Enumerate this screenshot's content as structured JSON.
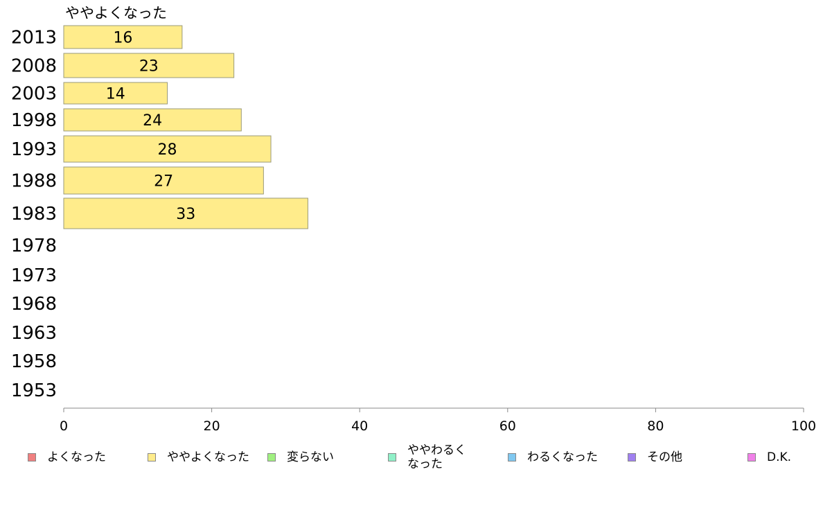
{
  "chart_data": {
    "type": "bar",
    "orientation": "horizontal",
    "title": "ややよくなった",
    "categories": [
      "2013",
      "2008",
      "2003",
      "1998",
      "1993",
      "1988",
      "1983",
      "1978",
      "1973",
      "1968",
      "1963",
      "1958",
      "1953"
    ],
    "series": [
      {
        "name": "ややよくなった",
        "color": "#ffec8b",
        "values": [
          16,
          23,
          14,
          24,
          28,
          27,
          33,
          null,
          null,
          null,
          null,
          null,
          null
        ]
      }
    ],
    "xlim": [
      0,
      100
    ],
    "xticks": [
      "0",
      "20",
      "40",
      "60",
      "80",
      "100"
    ],
    "xlabel": "",
    "ylabel": "",
    "grid": false,
    "legend_position": "bottom"
  },
  "legend": {
    "items": [
      {
        "label_lines": [
          "よくなった"
        ],
        "color": "#f08080"
      },
      {
        "label_lines": [
          "ややよくなった"
        ],
        "color": "#ffec8b"
      },
      {
        "label_lines": [
          "変らない"
        ],
        "color": "#a0f080"
      },
      {
        "label_lines": [
          "ややわるく",
          "なった"
        ],
        "color": "#90f0c8"
      },
      {
        "label_lines": [
          "わるくなった"
        ],
        "color": "#80c8f0"
      },
      {
        "label_lines": [
          "その他"
        ],
        "color": "#a080f0"
      },
      {
        "label_lines": [
          "D.K."
        ],
        "color": "#f080e8"
      }
    ]
  }
}
